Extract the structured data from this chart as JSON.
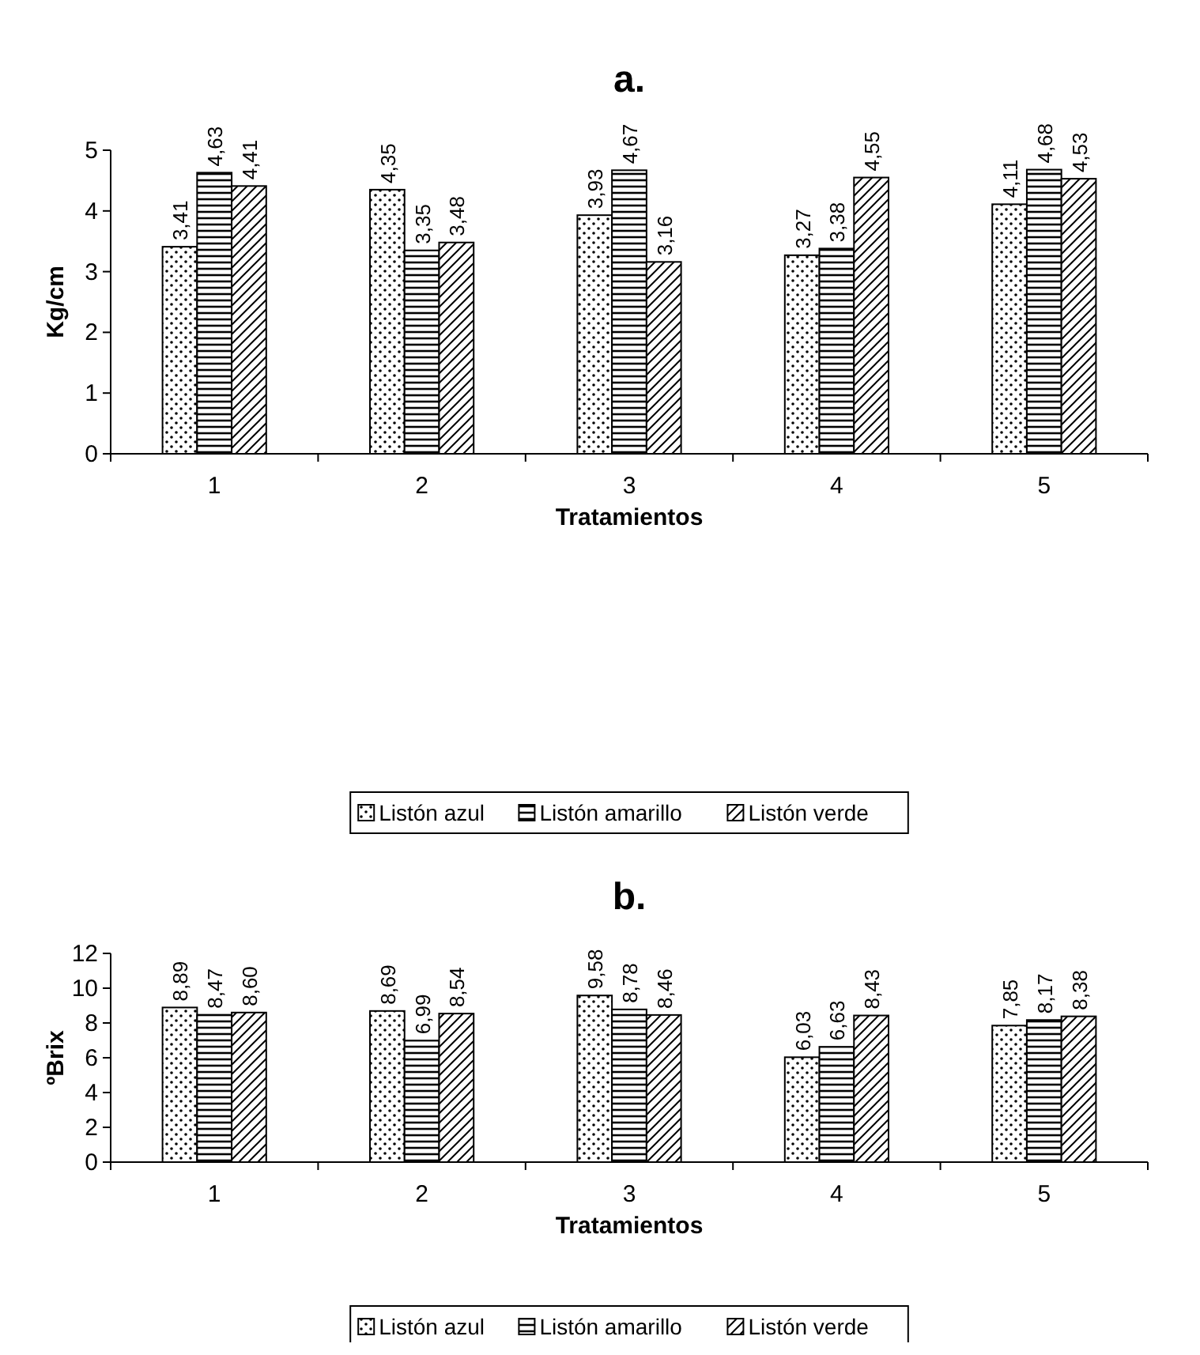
{
  "chart_data": [
    {
      "type": "bar",
      "title": "a.",
      "xlabel": "Tratamientos",
      "ylabel": "Kg/cm",
      "categories": [
        "1",
        "2",
        "3",
        "4",
        "5"
      ],
      "ylim": [
        0,
        5
      ],
      "yticks": [
        0,
        1,
        2,
        3,
        4,
        5
      ],
      "grid": false,
      "legend": "bottom",
      "series": [
        {
          "name": "Listón azul",
          "color": "#000000",
          "values": [
            3.41,
            4.35,
            3.93,
            3.27,
            4.11
          ],
          "value_labels": [
            "3,41",
            "4,35",
            "3,93",
            "3,27",
            "4,11"
          ]
        },
        {
          "name": "Listón amarillo",
          "color": "#000000",
          "values": [
            4.63,
            3.35,
            4.67,
            3.38,
            4.68
          ],
          "value_labels": [
            "4,63",
            "3,35",
            "4,67",
            "3,38",
            "4,68"
          ]
        },
        {
          "name": "Listón verde",
          "color": "#000000",
          "values": [
            4.41,
            3.48,
            3.16,
            4.55,
            4.53
          ],
          "value_labels": [
            "4,41",
            "3,48",
            "3,16",
            "4,55",
            "4,53"
          ]
        }
      ]
    },
    {
      "type": "bar",
      "title": "b.",
      "xlabel": "Tratamientos",
      "ylabel": "ºBrix",
      "categories": [
        "1",
        "2",
        "3",
        "4",
        "5"
      ],
      "ylim": [
        0,
        12
      ],
      "yticks": [
        0,
        2,
        4,
        6,
        8,
        10,
        12
      ],
      "grid": false,
      "legend": "bottom",
      "series": [
        {
          "name": "Listón azul",
          "color": "#000000",
          "values": [
            8.89,
            8.69,
            9.58,
            6.03,
            7.85
          ],
          "value_labels": [
            "8,89",
            "8,69",
            "9,58",
            "6,03",
            "7,85"
          ]
        },
        {
          "name": "Listón amarillo",
          "color": "#000000",
          "values": [
            8.47,
            6.99,
            8.78,
            6.63,
            8.17
          ],
          "value_labels": [
            "8,47",
            "6,99",
            "8,78",
            "6,63",
            "8,17"
          ]
        },
        {
          "name": "Listón verde",
          "color": "#000000",
          "values": [
            8.6,
            8.54,
            8.46,
            8.43,
            8.38
          ],
          "value_labels": [
            "8,60",
            "8,54",
            "8,46",
            "8,43",
            "8,38"
          ]
        }
      ]
    }
  ]
}
